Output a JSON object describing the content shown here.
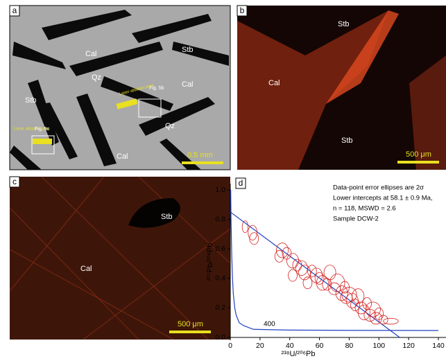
{
  "panels": [
    {
      "label": "a",
      "texts": [
        "Cal",
        "Stb",
        "Qz",
        "Cal",
        "Stb",
        "Laser ablation area",
        "Fig. 5b",
        "Qz",
        "Laser ablation area",
        "Fig. 5c",
        "Cal",
        "0.5 mm"
      ]
    },
    {
      "label": "b",
      "texts": [
        "Stb",
        "Cal",
        "Stb",
        "500 μm"
      ]
    },
    {
      "label": "c",
      "texts": [
        "Stb",
        "Cal",
        "500 μm"
      ]
    }
  ],
  "chart_data": {
    "type": "scatter",
    "panel_label": "d",
    "x_label": "²³⁸U/²⁰⁶Pb",
    "y_label": "²⁰⁷Pb/²⁰⁶Pb",
    "annotations": [
      "Data-point error ellipses are 2σ",
      "Lower intercepts at 58.1 ± 0.9 Ma,",
      "n = 118, MSWD = 2.6",
      "Sample DCW-2"
    ],
    "age_label": "400",
    "xlim": [
      0,
      140
    ],
    "ylim": [
      0,
      1.0
    ],
    "xticks": [
      0,
      20,
      40,
      60,
      80,
      100,
      120,
      140
    ],
    "yticks": [
      {
        "value": 0,
        "label": "0.0"
      },
      {
        "value": 0.2,
        "label": "0.2"
      },
      {
        "value": 0.4,
        "label": "0.4"
      },
      {
        "value": 0.6,
        "label": "0.6"
      },
      {
        "value": 0.8,
        "label": "0.8"
      },
      {
        "value": 1.0,
        "label": "1.0"
      }
    ],
    "ellipses": {
      "color": "#d42020",
      "x": [
        10,
        15,
        16,
        35,
        38,
        33,
        42,
        45,
        48,
        50,
        55,
        58,
        60,
        62,
        65,
        67,
        70,
        72,
        75,
        77,
        78,
        80,
        82,
        84,
        86,
        88,
        90,
        92,
        94,
        96,
        98,
        100,
        103,
        108,
        42,
        52
      ],
      "y": [
        0.75,
        0.71,
        0.67,
        0.59,
        0.57,
        0.55,
        0.52,
        0.49,
        0.47,
        0.44,
        0.45,
        0.42,
        0.4,
        0.37,
        0.36,
        0.44,
        0.33,
        0.37,
        0.3,
        0.34,
        0.27,
        0.29,
        0.25,
        0.22,
        0.28,
        0.2,
        0.17,
        0.23,
        0.15,
        0.19,
        0.13,
        0.16,
        0.12,
        0.11,
        0.42,
        0.37
      ],
      "ex": [
        2,
        3,
        3,
        4,
        3,
        3,
        4,
        3,
        4,
        4,
        3,
        4,
        3,
        4,
        3,
        4,
        4,
        5,
        4,
        3,
        4,
        5,
        4,
        3,
        4,
        4,
        4,
        3,
        4,
        5,
        4,
        3,
        3,
        5,
        3,
        3
      ],
      "ey": [
        0.04,
        0.05,
        0.04,
        0.05,
        0.04,
        0.04,
        0.05,
        0.04,
        0.05,
        0.05,
        0.04,
        0.05,
        0.04,
        0.05,
        0.04,
        0.05,
        0.04,
        0.06,
        0.05,
        0.04,
        0.04,
        0.05,
        0.05,
        0.04,
        0.05,
        0.04,
        0.05,
        0.04,
        0.04,
        0.05,
        0.04,
        0.04,
        0.03,
        0.02,
        0.04,
        0.04
      ]
    },
    "concordia": {
      "color": "#2040c0",
      "x": [
        0.3,
        0.5,
        1,
        1.5,
        2,
        3,
        4,
        6,
        9,
        15.5,
        40,
        80,
        140
      ],
      "y": [
        1.0,
        0.8,
        0.55,
        0.4,
        0.3,
        0.2,
        0.15,
        0.1,
        0.08,
        0.055,
        0.05,
        0.048,
        0.047
      ]
    },
    "regression": {
      "color": "#2040c0",
      "x": [
        0,
        114
      ],
      "y": [
        0.85,
        0
      ]
    }
  }
}
